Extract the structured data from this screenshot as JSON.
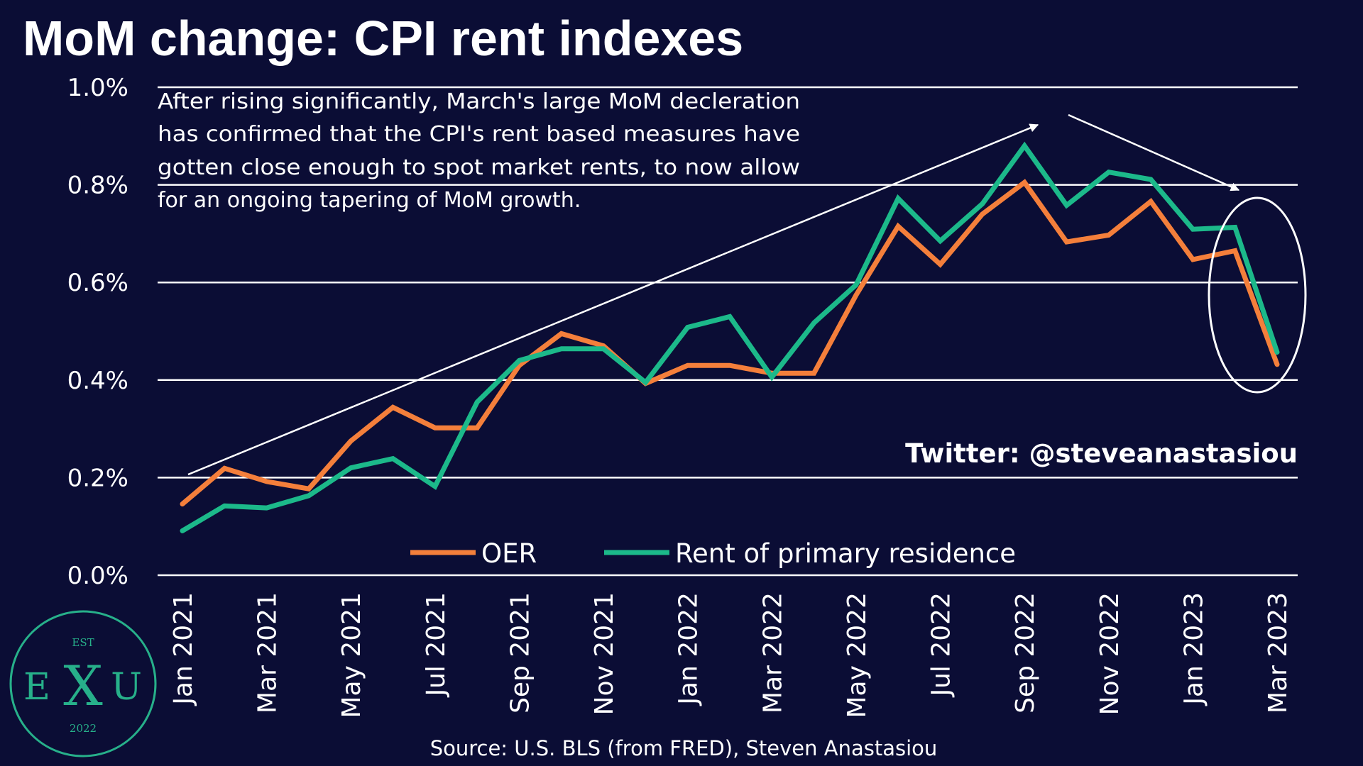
{
  "title": "MoM change: CPI rent indexes",
  "annotation_lines": [
    "After rising significantly, March's large MoM decleration",
    "has confirmed that the CPI's rent based measures have",
    "gotten close enough to spot market rents, to now allow",
    "for an ongoing tapering of MoM growth."
  ],
  "twitter": "Twitter: @steveanastasiou",
  "source": "Source: U.S. BLS (from FRED), Steven Anastasiou",
  "logo": {
    "top": "EST",
    "left": "E",
    "center": "X",
    "right": "U",
    "bottom": "2022"
  },
  "colors": {
    "background": "#0b0d35",
    "oer": "#f47f3b",
    "rent": "#1cb98a",
    "grid": "#ffffff",
    "text": "#ffffff",
    "logo": "#27b08a"
  },
  "chart_data": {
    "type": "line",
    "title": "MoM change: CPI rent indexes",
    "x": [
      "Jan 2021",
      "Feb 2021",
      "Mar 2021",
      "Apr 2021",
      "May 2021",
      "Jun 2021",
      "Jul 2021",
      "Aug 2021",
      "Sep 2021",
      "Oct 2021",
      "Nov 2021",
      "Dec 2021",
      "Jan 2022",
      "Feb 2022",
      "Mar 2022",
      "Apr 2022",
      "May 2022",
      "Jun 2022",
      "Jul 2022",
      "Aug 2022",
      "Sep 2022",
      "Oct 2022",
      "Nov 2022",
      "Dec 2022",
      "Jan 2023",
      "Feb 2023",
      "Mar 2023"
    ],
    "x_tick_labels": [
      "Jan 2021",
      "Mar 2021",
      "May 2021",
      "Jul 2021",
      "Sep 2021",
      "Nov 2021",
      "Jan 2022",
      "Mar 2022",
      "May 2022",
      "Jul 2022",
      "Sep 2022",
      "Nov 2022",
      "Jan 2023",
      "Mar 2023"
    ],
    "y_tick_labels": [
      "0.0%",
      "0.2%",
      "0.4%",
      "0.6%",
      "0.8%",
      "1.0%"
    ],
    "ylim": [
      0.0,
      1.0
    ],
    "y_unit": "%",
    "grid": "horizontal",
    "legend_position": "bottom-center",
    "series": [
      {
        "name": "OER",
        "color": "#f47f3b",
        "values": [
          0.146,
          0.219,
          0.192,
          0.177,
          0.275,
          0.344,
          0.302,
          0.302,
          0.43,
          0.495,
          0.47,
          0.393,
          0.43,
          0.43,
          0.414,
          0.414,
          0.574,
          0.715,
          0.637,
          0.74,
          0.805,
          0.683,
          0.697,
          0.766,
          0.647,
          0.665,
          0.432
        ]
      },
      {
        "name": "Rent of primary residence",
        "color": "#1cb98a",
        "values": [
          0.091,
          0.142,
          0.138,
          0.163,
          0.22,
          0.239,
          0.182,
          0.355,
          0.44,
          0.464,
          0.464,
          0.395,
          0.508,
          0.53,
          0.406,
          0.517,
          0.595,
          0.772,
          0.685,
          0.761,
          0.88,
          0.758,
          0.826,
          0.811,
          0.709,
          0.713,
          0.457
        ]
      }
    ],
    "annotations": [
      "rising-trend arrow from Jan 2021 to Sep 2022",
      "falling-trend arrow from Oct 2022 to Feb 2023",
      "ellipse highlighting Feb 2023 – Mar 2023"
    ]
  }
}
